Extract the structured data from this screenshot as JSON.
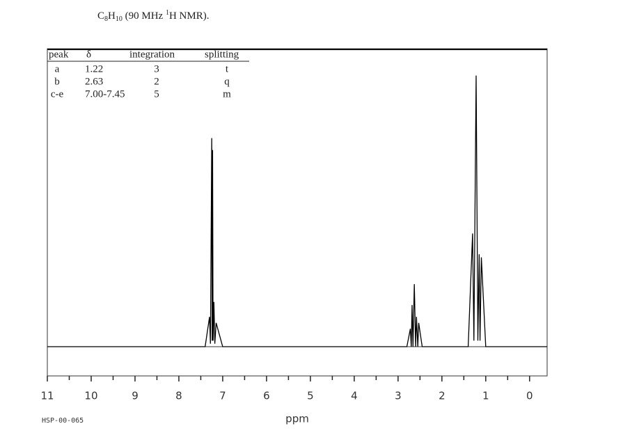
{
  "chart_data": {
    "type": "line",
    "title_parts": [
      "C",
      "8",
      "H",
      "10",
      " (90 MHz ",
      "1",
      "H NMR)."
    ],
    "table": {
      "columns": [
        "peak",
        "δ",
        "integration",
        "splitting"
      ],
      "rows": [
        [
          "a",
          "1.22",
          "3",
          "t"
        ],
        [
          "b",
          "2.63",
          "2",
          "q"
        ],
        [
          "c-e",
          "7.00-7.45",
          "5",
          "m"
        ]
      ]
    },
    "x_label": "ppm",
    "code": "HSP-00-065",
    "xlim": [
      11,
      -0.4
    ],
    "xticks": [
      11,
      10,
      9,
      8,
      7,
      6,
      5,
      4,
      3,
      2,
      1,
      0
    ],
    "xminor": [
      10.5,
      9.5,
      8.5,
      7.5,
      6.5,
      5.5,
      4.5,
      3.5,
      2.5,
      1.5,
      0.5
    ],
    "ylim": [
      0,
      100
    ],
    "color": "#000000",
    "x": [
      11,
      7.4,
      7.3,
      7.28,
      7.25,
      7.24,
      7.23,
      7.22,
      7.2,
      7.18,
      7.15,
      7.0,
      2.8,
      2.72,
      2.7,
      2.68,
      2.66,
      2.63,
      2.6,
      2.58,
      2.55,
      2.53,
      2.45,
      1.4,
      1.3,
      1.27,
      1.22,
      1.18,
      1.15,
      1.13,
      1.1,
      1.0,
      -0.4
    ],
    "values": [
      0,
      0,
      10,
      1,
      70,
      2,
      66,
      2,
      15,
      1,
      8,
      0,
      0,
      6,
      0,
      14,
      0,
      21,
      0,
      10,
      0,
      8,
      0,
      0,
      38,
      2,
      91,
      2,
      31,
      2,
      30,
      0,
      0
    ]
  }
}
